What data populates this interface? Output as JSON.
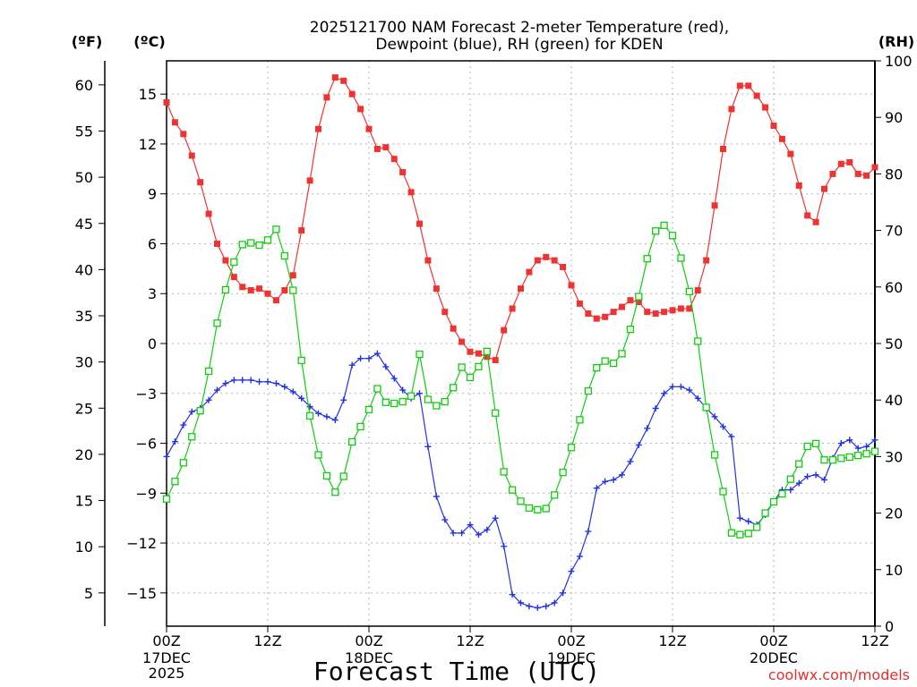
{
  "chart_data": {
    "type": "line",
    "title_line1": "2025121700 NAM Forecast 2-meter Temperature (red),",
    "title_line2": "Dewpoint (blue), RH (green) for KDEN",
    "units": {
      "fahrenheit": "(ºF)",
      "celsius": "(ºC)",
      "rh": "(RH)"
    },
    "xlabel": "Forecast Time (UTC)",
    "credit": "coolwx.com/models",
    "x_range_hours": [
      0,
      84
    ],
    "x_ticks": [
      {
        "h": 0,
        "label": "00Z",
        "date": "17DEC",
        "year": "2025"
      },
      {
        "h": 12,
        "label": "12Z"
      },
      {
        "h": 24,
        "label": "00Z",
        "date": "18DEC"
      },
      {
        "h": 36,
        "label": "12Z"
      },
      {
        "h": 48,
        "label": "00Z",
        "date": "19DEC"
      },
      {
        "h": 60,
        "label": "12Z"
      },
      {
        "h": 72,
        "label": "00Z",
        "date": "20DEC"
      },
      {
        "h": 84,
        "label": "12Z"
      }
    ],
    "celsius_range": [
      -17,
      17
    ],
    "celsius_ticks": [
      {
        "v": 15,
        "label": "15"
      },
      {
        "v": 12,
        "label": "12"
      },
      {
        "v": 9,
        "label": "9"
      },
      {
        "v": 6,
        "label": "6"
      },
      {
        "v": 3,
        "label": "3"
      },
      {
        "v": 0,
        "label": "0"
      },
      {
        "v": -3,
        "label": "−3"
      },
      {
        "v": -6,
        "label": "−6"
      },
      {
        "v": -9,
        "label": "−9"
      },
      {
        "v": -12,
        "label": "−12"
      },
      {
        "v": -15,
        "label": "−15"
      }
    ],
    "fahrenheit_ticks": [
      {
        "v": 60,
        "label": "60"
      },
      {
        "v": 55,
        "label": "55"
      },
      {
        "v": 50,
        "label": "50"
      },
      {
        "v": 45,
        "label": "45"
      },
      {
        "v": 40,
        "label": "40"
      },
      {
        "v": 35,
        "label": "35"
      },
      {
        "v": 30,
        "label": "30"
      },
      {
        "v": 25,
        "label": "25"
      },
      {
        "v": 20,
        "label": "20"
      },
      {
        "v": 15,
        "label": "15"
      },
      {
        "v": 10,
        "label": "10"
      },
      {
        "v": 5,
        "label": "5"
      }
    ],
    "rh_range": [
      0,
      100
    ],
    "rh_ticks": [
      {
        "v": 100,
        "label": "100"
      },
      {
        "v": 90,
        "label": "90"
      },
      {
        "v": 80,
        "label": "80"
      },
      {
        "v": 70,
        "label": "70"
      },
      {
        "v": 60,
        "label": "60"
      },
      {
        "v": 50,
        "label": "50"
      },
      {
        "v": 40,
        "label": "40"
      },
      {
        "v": 30,
        "label": "30"
      },
      {
        "v": 20,
        "label": "20"
      },
      {
        "v": 10,
        "label": "10"
      },
      {
        "v": 0,
        "label": "0"
      }
    ],
    "hours": [
      0,
      1,
      2,
      3,
      4,
      5,
      6,
      7,
      8,
      9,
      10,
      11,
      12,
      13,
      14,
      15,
      16,
      17,
      18,
      19,
      20,
      21,
      22,
      23,
      24,
      25,
      26,
      27,
      28,
      29,
      30,
      31,
      32,
      33,
      34,
      35,
      36,
      37,
      38,
      39,
      40,
      41,
      42,
      43,
      44,
      45,
      46,
      47,
      48,
      49,
      50,
      51,
      52,
      53,
      54,
      55,
      56,
      57,
      58,
      59,
      60,
      61,
      62,
      63,
      64,
      65,
      66,
      67,
      68,
      69,
      70,
      71,
      72,
      73,
      74,
      75,
      76,
      77,
      78,
      79,
      80,
      81,
      82,
      83,
      84
    ],
    "series": [
      {
        "name": "2-meter Temperature",
        "units": "C",
        "color": "#ee3333",
        "values": [
          14.5,
          13.3,
          12.6,
          11.3,
          9.7,
          7.8,
          6.0,
          5.0,
          4.0,
          3.4,
          3.2,
          3.3,
          3.0,
          2.6,
          3.2,
          4.1,
          6.8,
          9.8,
          12.9,
          14.8,
          16.0,
          15.8,
          15.0,
          14.1,
          12.9,
          11.7,
          11.8,
          11.1,
          10.3,
          9.1,
          7.2,
          5.0,
          3.3,
          1.9,
          0.9,
          0.1,
          -0.5,
          -0.6,
          -0.8,
          -1.0,
          0.8,
          2.1,
          3.3,
          4.3,
          5.0,
          5.2,
          5.0,
          4.6,
          3.5,
          2.4,
          1.8,
          1.5,
          1.6,
          1.9,
          2.2,
          2.6,
          2.5,
          1.9,
          1.8,
          1.9,
          2.0,
          2.1,
          2.1,
          3.2,
          5.0,
          8.3,
          11.7,
          14.1,
          15.5,
          15.5,
          14.9,
          14.2,
          13.1,
          12.3,
          11.4,
          9.5,
          7.7,
          7.3,
          9.3,
          10.2,
          10.8,
          10.9,
          10.2,
          10.1,
          10.6
        ]
      },
      {
        "name": "Dewpoint",
        "units": "C",
        "color": "#2233dd",
        "values": [
          -6.8,
          -5.9,
          -4.9,
          -4.1,
          -3.9,
          -3.4,
          -2.8,
          -2.4,
          -2.2,
          -2.2,
          -2.2,
          -2.3,
          -2.3,
          -2.4,
          -2.6,
          -2.9,
          -3.3,
          -3.8,
          -4.2,
          -4.4,
          -4.6,
          -3.4,
          -1.3,
          -0.9,
          -0.9,
          -0.6,
          -1.4,
          -2.1,
          -2.8,
          -3.3,
          -3.0,
          -6.2,
          -9.2,
          -10.6,
          -11.4,
          -11.4,
          -10.9,
          -11.5,
          -11.2,
          -10.5,
          -12.2,
          -15.1,
          -15.6,
          -15.8,
          -15.9,
          -15.8,
          -15.6,
          -15.0,
          -13.7,
          -12.8,
          -11.3,
          -8.7,
          -8.3,
          -8.2,
          -7.9,
          -7.1,
          -6.1,
          -5.1,
          -3.9,
          -3.0,
          -2.6,
          -2.6,
          -2.8,
          -3.3,
          -3.9,
          -4.4,
          -5.0,
          -5.6,
          -10.5,
          -10.7,
          -10.9,
          -10.3,
          -9.5,
          -8.8,
          -8.8,
          -8.4,
          -8.0,
          -7.9,
          -8.2,
          -6.9,
          -6.0,
          -5.8,
          -6.3,
          -6.2,
          -5.8
        ]
      },
      {
        "name": "RH",
        "units": "%",
        "color": "#11cc11",
        "values": [
          22.5,
          25.6,
          28.9,
          33.5,
          38.1,
          45.1,
          53.6,
          59.5,
          64.4,
          67.5,
          67.8,
          67.4,
          68.3,
          70.2,
          65.5,
          59.4,
          47.0,
          37.2,
          30.3,
          26.6,
          23.7,
          26.5,
          32.6,
          35.3,
          38.3,
          42.0,
          39.6,
          39.4,
          39.7,
          40.7,
          48.1,
          40.1,
          39.0,
          39.7,
          42.2,
          45.8,
          44.0,
          45.9,
          48.6,
          37.7,
          27.3,
          24.1,
          22.1,
          20.9,
          20.6,
          20.8,
          23.2,
          27.2,
          31.6,
          36.5,
          41.6,
          45.7,
          46.9,
          46.5,
          48.2,
          52.5,
          58.3,
          65.0,
          69.9,
          70.9,
          69.1,
          65.1,
          59.2,
          50.4,
          38.7,
          30.3,
          23.8,
          16.5,
          16.2,
          16.4,
          17.5,
          20.0,
          22.0,
          23.4,
          26.0,
          28.7,
          31.8,
          32.3,
          29.4,
          29.4,
          29.7,
          29.9,
          30.2,
          30.5,
          30.9
        ]
      }
    ]
  }
}
